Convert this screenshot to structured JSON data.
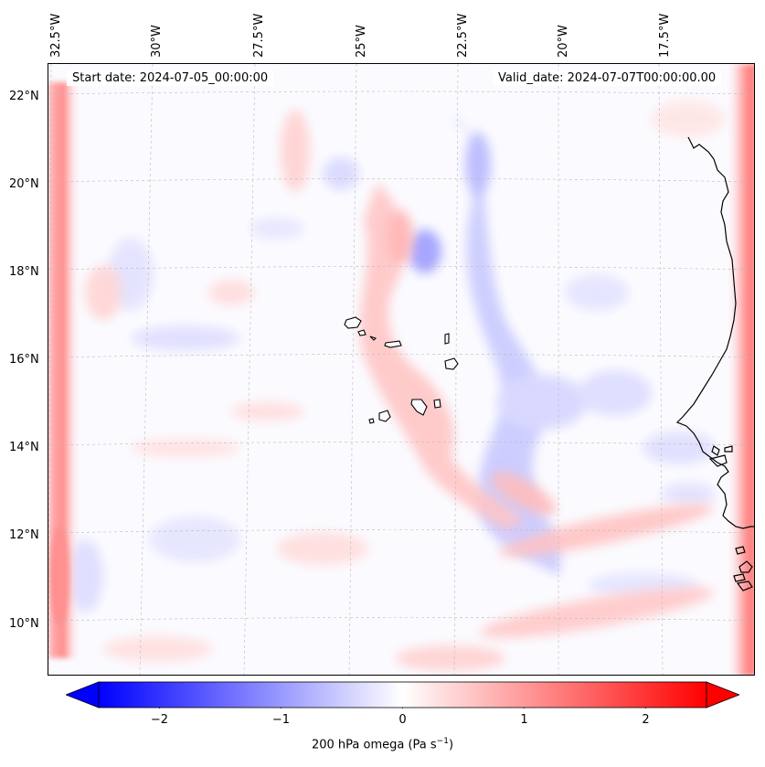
{
  "map": {
    "start_date": "Start date: 2024-07-05_00:00:00",
    "valid_date": "Valid_date: 2024-07-07T00:00:00.00",
    "lon_labels": [
      "32.5°W",
      "30°W",
      "27.5°W",
      "25°W",
      "22.5°W",
      "20°W",
      "17.5°W"
    ],
    "lat_labels": [
      "22°N",
      "20°N",
      "18°N",
      "16°N",
      "14°N",
      "12°N",
      "10°N"
    ],
    "field": "200 hPa omega",
    "colors": {
      "negative": "#0000ff",
      "zero": "#ffffff",
      "positive": "#ff0000",
      "coast": "#000000",
      "grid": "#bbbbbb"
    }
  },
  "colorbar": {
    "ticks": [
      "−2",
      "−1",
      "0",
      "1",
      "2"
    ],
    "tick_values": [
      -2,
      -1,
      0,
      1,
      2
    ],
    "range": [
      -2.5,
      2.5
    ],
    "label": "200 hPa omega (Pa s",
    "label_sup": "−1",
    "label_tail": ")"
  }
}
